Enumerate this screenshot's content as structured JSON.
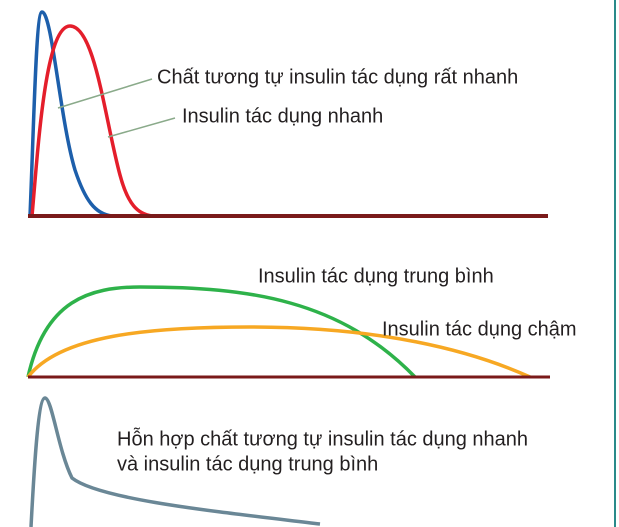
{
  "labels": {
    "very_fast": "Chất tương tự insulin tác dụng rất nhanh",
    "fast": "Insulin tác dụng nhanh",
    "intermediate": "Insulin tác dụng trung bình",
    "slow": "Insulin tác dụng chậm",
    "mixed_line1": "Hỗn hợp chất tương tự insulin tác dụng nhanh",
    "mixed_line2": "và insulin tác dụng trung bình"
  }
}
